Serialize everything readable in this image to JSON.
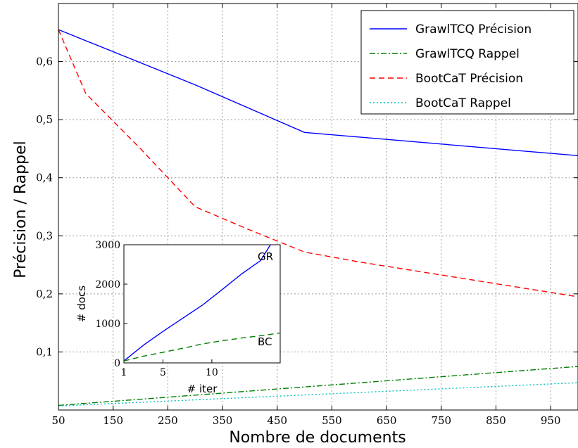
{
  "chart_data": [
    {
      "type": "line",
      "xlabel": "Nombre de documents",
      "ylabel": "Précision / Rappel",
      "xlim": [
        50,
        1000
      ],
      "ylim": [
        0,
        0.7
      ],
      "xticks": [
        50,
        150,
        250,
        350,
        450,
        550,
        650,
        750,
        850,
        950
      ],
      "yticks": [
        0.1,
        0.2,
        0.3,
        0.4,
        0.5,
        0.6
      ],
      "ytick_labels": [
        "0,1",
        "0,2",
        "0,3",
        "0,4",
        "0,5",
        "0,6"
      ],
      "grid": true,
      "legend_position": "top-right",
      "series": [
        {
          "name": "GrawlTCQ Précision",
          "color": "#0000ff",
          "style": "solid",
          "x": [
            50,
            300,
            500,
            1000
          ],
          "y": [
            0.655,
            0.56,
            0.478,
            0.438
          ]
        },
        {
          "name": "GrawlTCQ Rappel",
          "color": "#007f00",
          "style": "dashdot",
          "x": [
            50,
            1000
          ],
          "y": [
            0.008,
            0.075
          ]
        },
        {
          "name": "BootCaT Précision",
          "color": "#ff0000",
          "style": "dashed",
          "x": [
            50,
            100,
            200,
            300,
            400,
            500,
            600,
            700,
            800,
            900,
            1000
          ],
          "y": [
            0.655,
            0.545,
            0.45,
            0.35,
            0.31,
            0.272,
            0.255,
            0.24,
            0.225,
            0.21,
            0.195
          ]
        },
        {
          "name": "BootCaT Rappel",
          "color": "#00bfbf",
          "style": "dotted",
          "x": [
            50,
            1000
          ],
          "y": [
            0.007,
            0.047
          ]
        }
      ]
    },
    {
      "type": "line",
      "xlabel": "# iter",
      "ylabel": "# docs",
      "xlim": [
        1,
        17
      ],
      "ylim": [
        0,
        3000
      ],
      "xticks": [
        1,
        5,
        10
      ],
      "yticks": [
        0,
        1000,
        2000,
        3000
      ],
      "grid": false,
      "series": [
        {
          "label": "GR",
          "color": "#0000ff",
          "style": "solid",
          "x": [
            1,
            3,
            5,
            7,
            9,
            11,
            13,
            15,
            16
          ],
          "y": [
            50,
            450,
            800,
            1130,
            1460,
            1850,
            2250,
            2600,
            3000
          ]
        },
        {
          "label": "BC",
          "color": "#007f00",
          "style": "dashed",
          "x": [
            1,
            3,
            5,
            7,
            9,
            11,
            13,
            15,
            17
          ],
          "y": [
            50,
            170,
            270,
            370,
            480,
            560,
            630,
            690,
            760
          ]
        }
      ]
    }
  ]
}
